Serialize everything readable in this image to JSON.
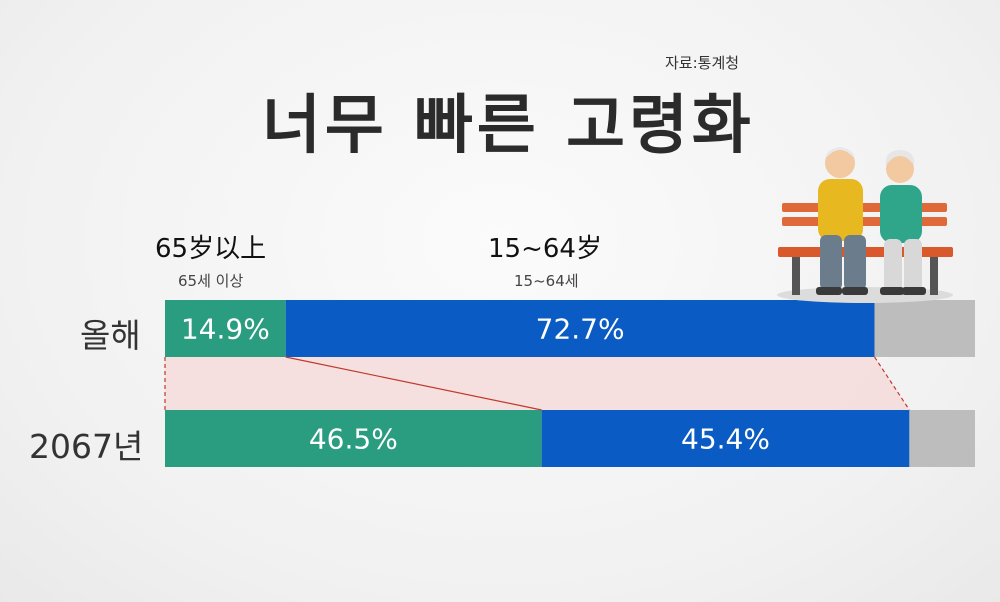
{
  "source": "자료:통계청",
  "title": "너무 빠른 고령화",
  "captions": {
    "group1_cn": "65岁以上",
    "group1_ko": "65세 이상",
    "group2_cn": "15~64岁",
    "group2_ko": "15~64세"
  },
  "colors": {
    "elderly": "#2a9d80",
    "working": "#0b5bc4",
    "rest": "#bdbdbd",
    "shift": "#f5dada"
  },
  "chart_data": {
    "type": "bar",
    "orientation": "horizontal-stacked-100",
    "categories": [
      "올해",
      "2067년"
    ],
    "series": [
      {
        "name": "65세 이상",
        "values": [
          14.9,
          46.5
        ],
        "labels": [
          "14.9%",
          "46.5%"
        ]
      },
      {
        "name": "15~64세",
        "values": [
          72.7,
          45.4
        ],
        "labels": [
          "72.7%",
          "45.4%"
        ]
      },
      {
        "values": [
          12.4,
          8.1
        ]
      }
    ],
    "xlim": [
      0,
      100
    ],
    "grid": false
  }
}
